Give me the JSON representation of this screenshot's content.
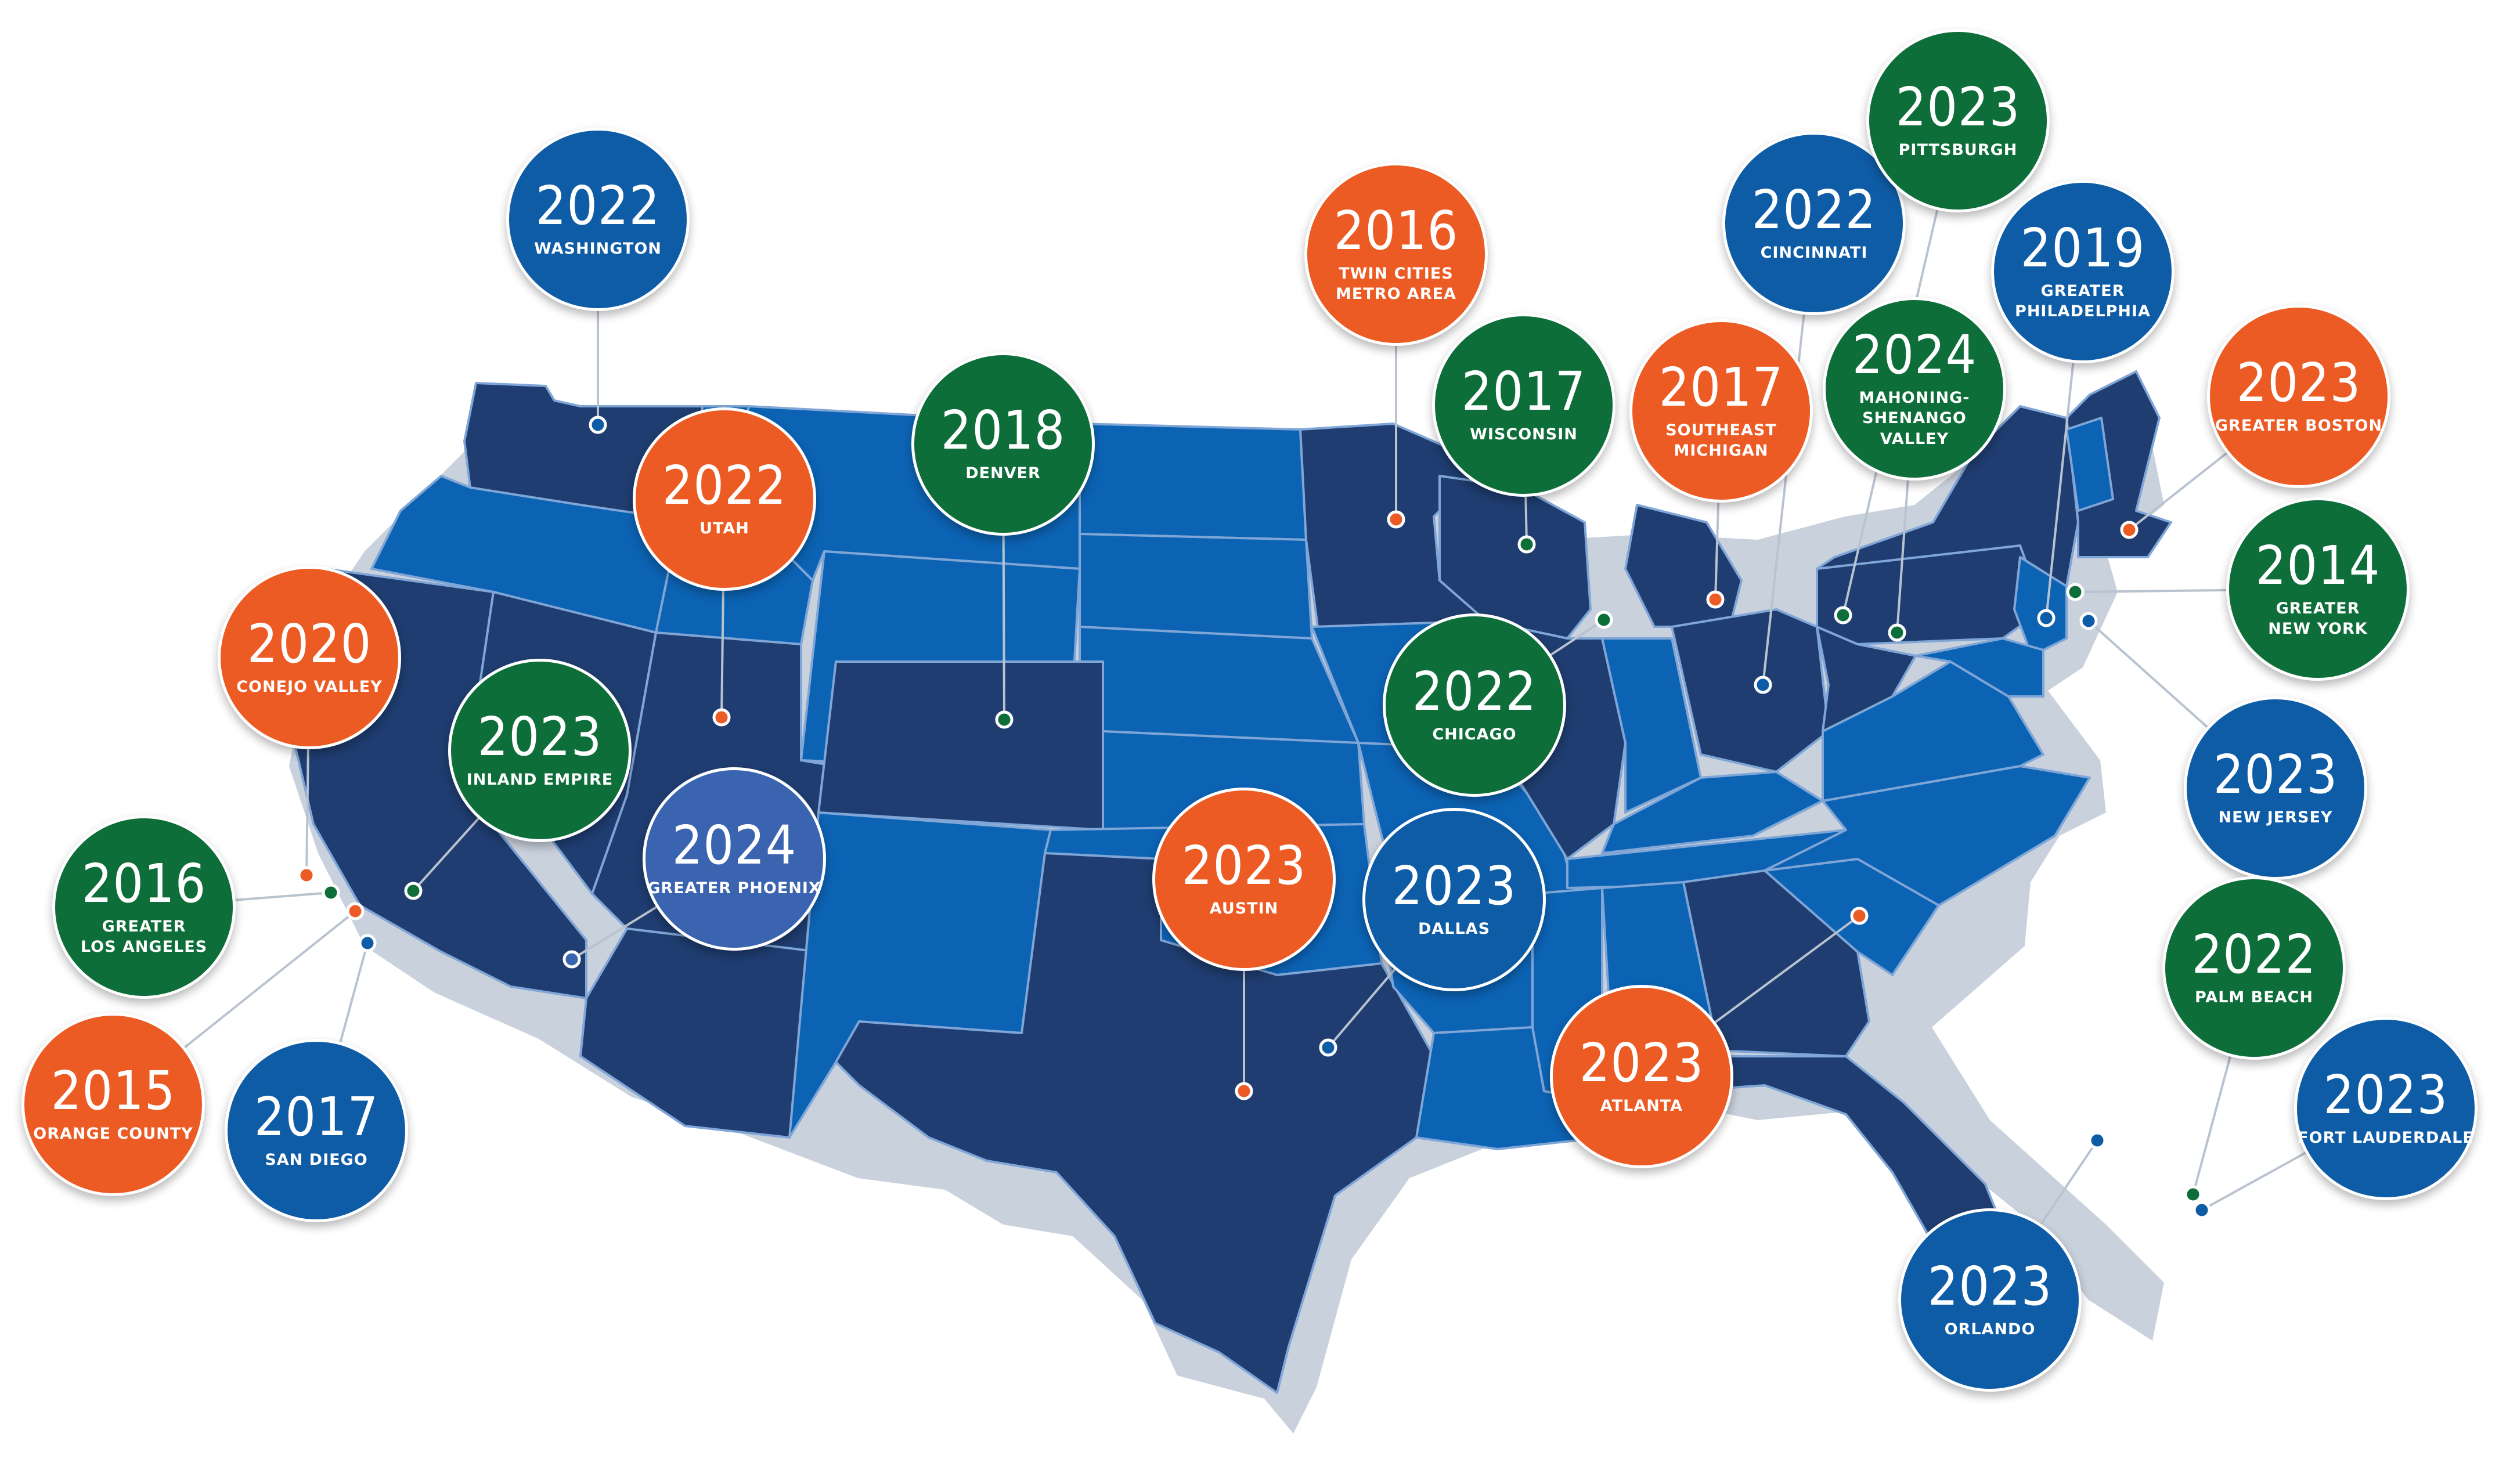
{
  "map": {
    "title": "",
    "colors": {
      "orange": "#EC5B24",
      "green": "#0E6E3A",
      "blue": "#0F5CA6",
      "light_blue": "#3A64B0",
      "state_dark": "#1F3D70",
      "state_mid": "#0C63B4",
      "shadow": "#C8D0DC"
    }
  },
  "markers": [
    {
      "id": "washington",
      "year": "2022",
      "name": "WASHINGTON",
      "color": "blue"
    },
    {
      "id": "utah",
      "year": "2022",
      "name": "UTAH",
      "color": "orange"
    },
    {
      "id": "conejo-valley",
      "year": "2020",
      "name": "CONEJO VALLEY",
      "color": "orange"
    },
    {
      "id": "inland-empire",
      "year": "2023",
      "name": "INLAND EMPIRE",
      "color": "green"
    },
    {
      "id": "greater-los-angeles",
      "year": "2016",
      "name": "GREATER\nLOS ANGELES",
      "color": "green"
    },
    {
      "id": "orange-county",
      "year": "2015",
      "name": "ORANGE COUNTY",
      "color": "orange"
    },
    {
      "id": "san-diego",
      "year": "2017",
      "name": "SAN DIEGO",
      "color": "blue"
    },
    {
      "id": "greater-phoenix",
      "year": "2024",
      "name": "GREATER PHOENIX",
      "color": "light_blue"
    },
    {
      "id": "denver",
      "year": "2018",
      "name": "DENVER",
      "color": "green"
    },
    {
      "id": "twin-cities",
      "year": "2016",
      "name": "TWIN CITIES\nMETRO AREA",
      "color": "orange"
    },
    {
      "id": "wisconsin",
      "year": "2017",
      "name": "WISCONSIN",
      "color": "green"
    },
    {
      "id": "chicago",
      "year": "2022",
      "name": "CHICAGO",
      "color": "green"
    },
    {
      "id": "austin",
      "year": "2023",
      "name": "AUSTIN",
      "color": "orange"
    },
    {
      "id": "dallas",
      "year": "2023",
      "name": "DALLAS",
      "color": "blue"
    },
    {
      "id": "atlanta",
      "year": "2023",
      "name": "ATLANTA",
      "color": "orange"
    },
    {
      "id": "southeast-michigan",
      "year": "2017",
      "name": "SOUTHEAST\nMICHIGAN",
      "color": "orange"
    },
    {
      "id": "cincinnati",
      "year": "2022",
      "name": "CINCINNATI",
      "color": "blue"
    },
    {
      "id": "pittsburgh",
      "year": "2023",
      "name": "PITTSBURGH",
      "color": "green"
    },
    {
      "id": "mahoning-shenango-valley",
      "year": "2024",
      "name": "MAHONING-SHENANGO\nVALLEY",
      "color": "green"
    },
    {
      "id": "greater-philadelphia",
      "year": "2019",
      "name": "GREATER\nPHILADELPHIA",
      "color": "blue"
    },
    {
      "id": "greater-boston",
      "year": "2023",
      "name": "GREATER BOSTON",
      "color": "orange"
    },
    {
      "id": "greater-new-york",
      "year": "2014",
      "name": "GREATER\nNEW YORK",
      "color": "green"
    },
    {
      "id": "new-jersey",
      "year": "2023",
      "name": "NEW JERSEY",
      "color": "blue"
    },
    {
      "id": "palm-beach",
      "year": "2022",
      "name": "PALM BEACH",
      "color": "green"
    },
    {
      "id": "fort-lauderdale",
      "year": "2023",
      "name": "FORT LAUDERDALE",
      "color": "blue"
    },
    {
      "id": "orlando",
      "year": "2023",
      "name": "ORLANDO",
      "color": "blue"
    }
  ]
}
